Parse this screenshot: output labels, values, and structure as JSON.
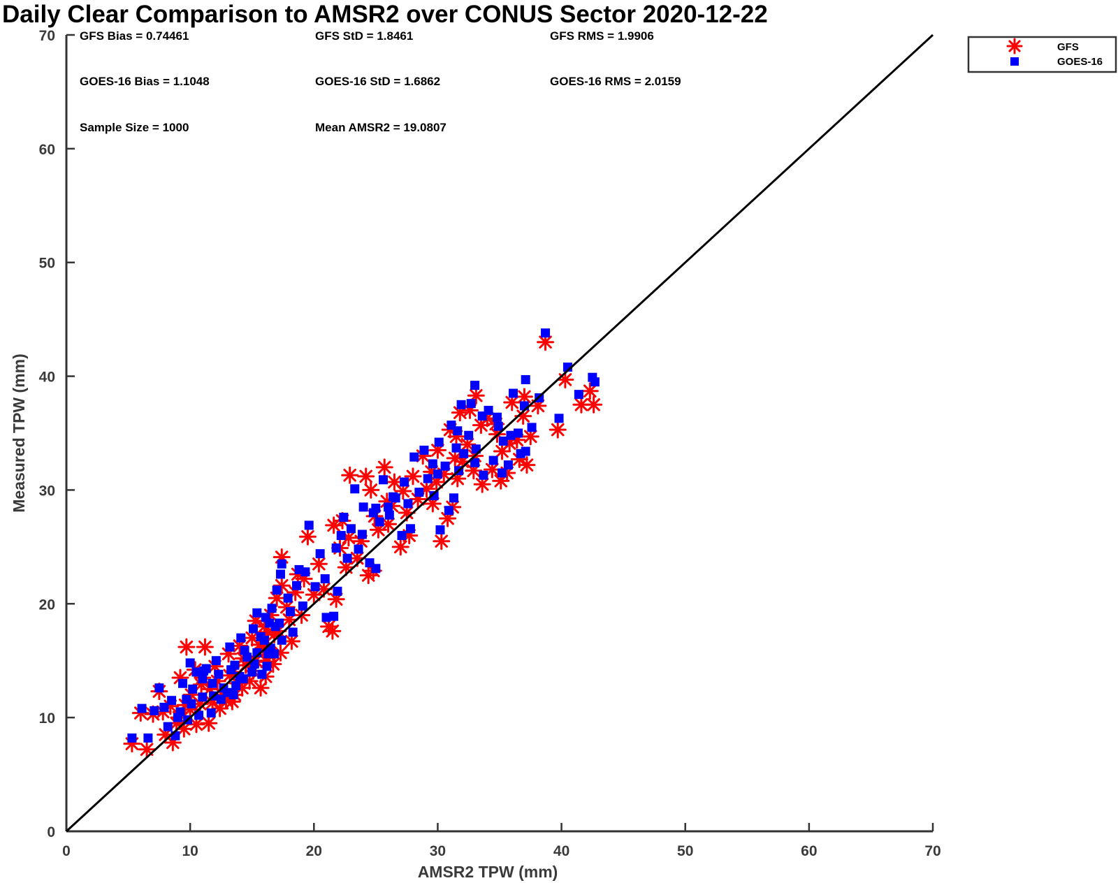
{
  "chart_data": {
    "type": "scatter",
    "title": "Daily Clear Comparison to AMSR2 over CONUS Sector 2020-12-22",
    "xlabel": "AMSR2 TPW (mm)",
    "ylabel": "Measured TPW (mm)",
    "xlim": [
      0,
      70
    ],
    "ylim": [
      0,
      70
    ],
    "xticks": [
      "0",
      "10",
      "20",
      "30",
      "40",
      "50",
      "60",
      "70"
    ],
    "yticks": [
      "0",
      "10",
      "20",
      "30",
      "40",
      "50",
      "60",
      "70"
    ],
    "grid": false,
    "reference_line": {
      "from": [
        0,
        0
      ],
      "to": [
        70,
        70
      ],
      "color": "#000000"
    },
    "legend_placement": "outside-top-right",
    "stats": {
      "gfs_bias": "GFS Bias = 0.74461",
      "gfs_std": "GFS StD = 1.8461",
      "gfs_rms": "GFS RMS = 1.9906",
      "goes_bias": "GOES-16 Bias = 1.1048",
      "goes_std": "GOES-16 StD = 1.6862",
      "goes_rms": "GOES-16 RMS = 2.0159",
      "sample_size": "Sample Size = 1000",
      "mean_amsr2": "Mean AMSR2 = 19.0807"
    },
    "series": [
      {
        "name": "GFS",
        "marker": "asterisk",
        "color": "#ff0000",
        "points": [
          [
            5.3,
            7.7
          ],
          [
            6.5,
            7.2
          ],
          [
            8.6,
            7.8
          ],
          [
            8.0,
            8.5
          ],
          [
            9.5,
            9.0
          ],
          [
            10.5,
            9.4
          ],
          [
            11.5,
            9.5
          ],
          [
            7.5,
            12.3
          ],
          [
            9.7,
            16.2
          ],
          [
            11.2,
            16.2
          ],
          [
            9.2,
            13.5
          ],
          [
            10.1,
            12.0
          ],
          [
            10.8,
            11.2
          ],
          [
            11.6,
            12.5
          ],
          [
            12.4,
            10.8
          ],
          [
            12.9,
            11.5
          ],
          [
            13.6,
            12.0
          ],
          [
            14.2,
            12.6
          ],
          [
            14.8,
            13.2
          ],
          [
            15.7,
            12.6
          ],
          [
            16.1,
            13.6
          ],
          [
            16.7,
            14.7
          ],
          [
            17.3,
            15.7
          ],
          [
            12.0,
            14.5
          ],
          [
            13.1,
            15.6
          ],
          [
            14.0,
            16.3
          ],
          [
            15.0,
            17.0
          ],
          [
            16.0,
            18.0
          ],
          [
            16.5,
            19.0
          ],
          [
            17.0,
            20.5
          ],
          [
            17.4,
            21.6
          ],
          [
            17.4,
            24.1
          ],
          [
            13.5,
            14.0
          ],
          [
            15.3,
            18.5
          ],
          [
            16.3,
            17.5
          ],
          [
            18.0,
            18.6
          ],
          [
            18.5,
            21.0
          ],
          [
            19.2,
            22.2
          ],
          [
            19.5,
            25.9
          ],
          [
            20.4,
            23.5
          ],
          [
            21.2,
            18.0
          ],
          [
            21.5,
            17.6
          ],
          [
            21.6,
            26.9
          ],
          [
            22.3,
            27.3
          ],
          [
            22.1,
            24.9
          ],
          [
            22.8,
            25.8
          ],
          [
            24.4,
            22.5
          ],
          [
            24.8,
            22.9
          ],
          [
            22.9,
            31.3
          ],
          [
            24.2,
            31.2
          ],
          [
            24.6,
            30.0
          ],
          [
            25.7,
            32.0
          ],
          [
            25.9,
            29.0
          ],
          [
            26.5,
            30.7
          ],
          [
            27.0,
            25.0
          ],
          [
            27.7,
            26.0
          ],
          [
            28.4,
            29.2
          ],
          [
            29.1,
            30.1
          ],
          [
            29.6,
            28.8
          ],
          [
            30.3,
            25.5
          ],
          [
            30.8,
            27.5
          ],
          [
            31.2,
            28.5
          ],
          [
            31.6,
            31.0
          ],
          [
            32.0,
            32.5
          ],
          [
            32.4,
            34.0
          ],
          [
            33.0,
            33.0
          ],
          [
            33.6,
            30.5
          ],
          [
            34.4,
            31.8
          ],
          [
            35.1,
            30.8
          ],
          [
            35.6,
            31.5
          ],
          [
            32.6,
            37.0
          ],
          [
            33.1,
            38.3
          ],
          [
            31.5,
            34.7
          ],
          [
            31.0,
            35.3
          ],
          [
            34.7,
            35.8
          ],
          [
            35.8,
            34.1
          ],
          [
            36.4,
            34.4
          ],
          [
            37.2,
            32.2
          ],
          [
            37.5,
            34.7
          ],
          [
            36.9,
            36.5
          ],
          [
            38.1,
            37.4
          ],
          [
            38.7,
            43.0
          ],
          [
            39.7,
            35.3
          ],
          [
            40.3,
            39.7
          ],
          [
            41.6,
            37.5
          ],
          [
            42.6,
            37.5
          ],
          [
            42.3,
            38.7
          ],
          [
            26.0,
            27.0
          ],
          [
            27.5,
            28.0
          ],
          [
            28.8,
            33.0
          ],
          [
            30.0,
            33.5
          ],
          [
            29.5,
            31.6
          ],
          [
            31.8,
            36.8
          ],
          [
            36.0,
            37.7
          ],
          [
            37.0,
            38.2
          ],
          [
            25.2,
            26.5
          ],
          [
            23.5,
            24.0
          ],
          [
            20.0,
            20.8
          ],
          [
            19.0,
            19.0
          ],
          [
            18.2,
            16.7
          ],
          [
            6.0,
            10.4
          ],
          [
            7.0,
            10.3
          ],
          [
            7.8,
            10.5
          ],
          [
            8.4,
            11.0
          ],
          [
            9.1,
            10.0
          ],
          [
            10.4,
            14.2
          ],
          [
            11.0,
            13.5
          ],
          [
            12.6,
            12.0
          ],
          [
            13.2,
            13.7
          ],
          [
            14.5,
            14.6
          ],
          [
            15.3,
            15.0
          ],
          [
            15.9,
            16.1
          ],
          [
            16.8,
            17.3
          ],
          [
            17.8,
            19.7
          ],
          [
            18.7,
            22.6
          ],
          [
            20.8,
            21.3
          ],
          [
            21.8,
            20.4
          ],
          [
            22.6,
            23.2
          ],
          [
            23.8,
            25.5
          ],
          [
            24.9,
            27.7
          ],
          [
            26.3,
            28.6
          ],
          [
            27.2,
            29.9
          ],
          [
            28.0,
            31.2
          ],
          [
            33.5,
            35.7
          ],
          [
            34.0,
            36.3
          ],
          [
            35.2,
            33.4
          ],
          [
            36.6,
            32.7
          ],
          [
            30.5,
            31.4
          ],
          [
            29.9,
            30.7
          ],
          [
            31.4,
            32.8
          ],
          [
            32.9,
            31.7
          ],
          [
            34.8,
            34.9
          ],
          [
            10.0,
            10.7
          ],
          [
            11.8,
            11.3
          ],
          [
            13.9,
            13.0
          ],
          [
            14.3,
            15.2
          ],
          [
            15.6,
            16.4
          ],
          [
            16.4,
            15.5
          ],
          [
            17.1,
            17.6
          ],
          [
            12.2,
            13.2
          ],
          [
            9.6,
            11.1
          ],
          [
            8.9,
            9.5
          ],
          [
            10.9,
            12.9
          ],
          [
            13.4,
            11.4
          ],
          [
            15.1,
            14.1
          ],
          [
            16.2,
            14.9
          ]
        ]
      },
      {
        "name": "GOES-16",
        "marker": "square",
        "color": "#0000ff",
        "points": [
          [
            5.3,
            8.2
          ],
          [
            6.6,
            8.2
          ],
          [
            8.8,
            8.4
          ],
          [
            8.2,
            9.2
          ],
          [
            9.8,
            9.8
          ],
          [
            10.7,
            10.2
          ],
          [
            11.7,
            10.4
          ],
          [
            7.5,
            12.6
          ],
          [
            10.0,
            14.8
          ],
          [
            11.3,
            14.3
          ],
          [
            9.4,
            13.0
          ],
          [
            10.2,
            12.5
          ],
          [
            11.0,
            11.8
          ],
          [
            11.8,
            13.0
          ],
          [
            12.5,
            11.6
          ],
          [
            13.0,
            12.2
          ],
          [
            13.7,
            12.8
          ],
          [
            14.3,
            13.4
          ],
          [
            15.0,
            14.0
          ],
          [
            15.8,
            13.8
          ],
          [
            16.2,
            14.5
          ],
          [
            16.8,
            15.6
          ],
          [
            17.4,
            16.8
          ],
          [
            12.1,
            15.0
          ],
          [
            13.2,
            16.2
          ],
          [
            14.1,
            17.0
          ],
          [
            15.1,
            17.8
          ],
          [
            16.1,
            18.8
          ],
          [
            16.6,
            19.6
          ],
          [
            17.0,
            21.2
          ],
          [
            17.3,
            22.6
          ],
          [
            17.4,
            23.5
          ],
          [
            13.6,
            14.6
          ],
          [
            15.4,
            19.2
          ],
          [
            16.4,
            18.3
          ],
          [
            18.1,
            19.3
          ],
          [
            18.6,
            21.6
          ],
          [
            19.3,
            22.8
          ],
          [
            19.6,
            26.9
          ],
          [
            20.5,
            24.4
          ],
          [
            21.0,
            18.8
          ],
          [
            21.6,
            18.9
          ],
          [
            21.8,
            24.9
          ],
          [
            22.4,
            27.6
          ],
          [
            22.2,
            26.0
          ],
          [
            23.0,
            26.6
          ],
          [
            24.5,
            23.6
          ],
          [
            25.0,
            23.1
          ],
          [
            23.3,
            30.1
          ],
          [
            24.0,
            28.5
          ],
          [
            24.8,
            28.0
          ],
          [
            25.6,
            30.9
          ],
          [
            26.0,
            28.5
          ],
          [
            26.6,
            29.3
          ],
          [
            27.1,
            26.0
          ],
          [
            27.8,
            26.6
          ],
          [
            28.5,
            29.8
          ],
          [
            29.2,
            31.0
          ],
          [
            29.7,
            29.5
          ],
          [
            30.2,
            26.5
          ],
          [
            30.9,
            28.2
          ],
          [
            31.3,
            29.3
          ],
          [
            31.7,
            31.7
          ],
          [
            32.1,
            33.2
          ],
          [
            32.5,
            34.8
          ],
          [
            33.1,
            33.6
          ],
          [
            33.7,
            31.3
          ],
          [
            34.5,
            32.6
          ],
          [
            35.2,
            31.5
          ],
          [
            35.7,
            32.2
          ],
          [
            32.7,
            37.6
          ],
          [
            33.0,
            39.2
          ],
          [
            31.6,
            35.2
          ],
          [
            31.1,
            35.7
          ],
          [
            34.8,
            36.4
          ],
          [
            35.9,
            34.8
          ],
          [
            36.5,
            35.0
          ],
          [
            37.1,
            33.4
          ],
          [
            37.6,
            35.5
          ],
          [
            37.0,
            37.4
          ],
          [
            38.2,
            38.1
          ],
          [
            38.7,
            43.8
          ],
          [
            39.8,
            36.3
          ],
          [
            40.5,
            40.8
          ],
          [
            41.4,
            38.4
          ],
          [
            42.5,
            39.9
          ],
          [
            42.7,
            39.5
          ],
          [
            26.1,
            27.8
          ],
          [
            27.6,
            28.8
          ],
          [
            28.9,
            33.5
          ],
          [
            30.1,
            34.2
          ],
          [
            29.6,
            32.3
          ],
          [
            31.9,
            37.5
          ],
          [
            36.1,
            38.5
          ],
          [
            37.1,
            39.7
          ],
          [
            25.3,
            27.2
          ],
          [
            23.6,
            24.8
          ],
          [
            20.1,
            21.5
          ],
          [
            19.1,
            19.8
          ],
          [
            18.3,
            17.5
          ],
          [
            6.1,
            10.8
          ],
          [
            7.1,
            10.6
          ],
          [
            7.9,
            10.9
          ],
          [
            8.5,
            11.5
          ],
          [
            9.2,
            10.5
          ],
          [
            10.5,
            14.0
          ],
          [
            11.1,
            14.1
          ],
          [
            12.7,
            12.6
          ],
          [
            13.3,
            14.2
          ],
          [
            14.6,
            15.3
          ],
          [
            15.4,
            15.7
          ],
          [
            16.0,
            16.8
          ],
          [
            16.9,
            18.0
          ],
          [
            17.9,
            20.5
          ],
          [
            18.8,
            23.0
          ],
          [
            20.9,
            22.2
          ],
          [
            21.9,
            21.1
          ],
          [
            22.7,
            24.0
          ],
          [
            23.9,
            26.1
          ],
          [
            25.0,
            28.4
          ],
          [
            26.4,
            29.4
          ],
          [
            27.3,
            30.7
          ],
          [
            28.1,
            32.9
          ],
          [
            33.6,
            36.5
          ],
          [
            34.1,
            37.0
          ],
          [
            35.3,
            34.3
          ],
          [
            36.7,
            33.2
          ],
          [
            30.6,
            32.1
          ],
          [
            30.0,
            31.4
          ],
          [
            31.5,
            33.7
          ],
          [
            33.0,
            32.4
          ],
          [
            34.9,
            35.6
          ],
          [
            10.1,
            11.2
          ],
          [
            11.9,
            11.9
          ],
          [
            14.0,
            13.6
          ],
          [
            14.4,
            15.9
          ],
          [
            15.7,
            17.1
          ],
          [
            16.5,
            16.1
          ],
          [
            17.2,
            18.3
          ],
          [
            12.3,
            13.8
          ],
          [
            9.7,
            11.6
          ],
          [
            9.0,
            10.0
          ],
          [
            11.0,
            13.4
          ],
          [
            13.5,
            12.0
          ],
          [
            15.2,
            14.7
          ],
          [
            16.3,
            15.6
          ]
        ]
      }
    ]
  }
}
